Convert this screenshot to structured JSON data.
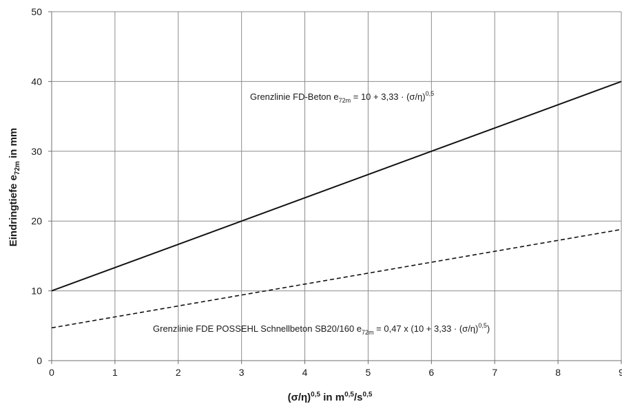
{
  "chart_data": {
    "type": "line",
    "xlabel": {
      "base": "(σ/η)",
      "sup1": "0,5",
      "mid": " in m",
      "sup2": "0,5",
      "tail": "/s",
      "sup3": "0,5"
    },
    "ylabel": {
      "base": "Eindringtiefe e",
      "sub": "72m",
      "tail": " in mm"
    },
    "xlim": [
      0,
      9
    ],
    "ylim": [
      0,
      50
    ],
    "x_ticks": [
      0,
      1,
      2,
      3,
      4,
      5,
      6,
      7,
      8,
      9
    ],
    "y_ticks": [
      0,
      10,
      20,
      30,
      40,
      50
    ],
    "grid": true,
    "series": [
      {
        "style": "solid",
        "points": [
          [
            0,
            10
          ],
          [
            9,
            40
          ]
        ],
        "annotation": {
          "pre": "Grenzlinie FD-Beton  e",
          "sub": "72m",
          "mid": " = 10 + 3,33 · (σ/η)",
          "sup": "0,5",
          "post": ""
        }
      },
      {
        "style": "dashed",
        "points": [
          [
            0,
            4.7
          ],
          [
            9,
            18.8
          ]
        ],
        "annotation": {
          "pre": "Grenzlinie FDE POSSEHL Schnellbeton SB20/160  e",
          "sub": "72m",
          "mid": " = 0,47 x (10 + 3,33 · (σ/η)",
          "sup": "0,5",
          "post": ")"
        }
      }
    ]
  }
}
